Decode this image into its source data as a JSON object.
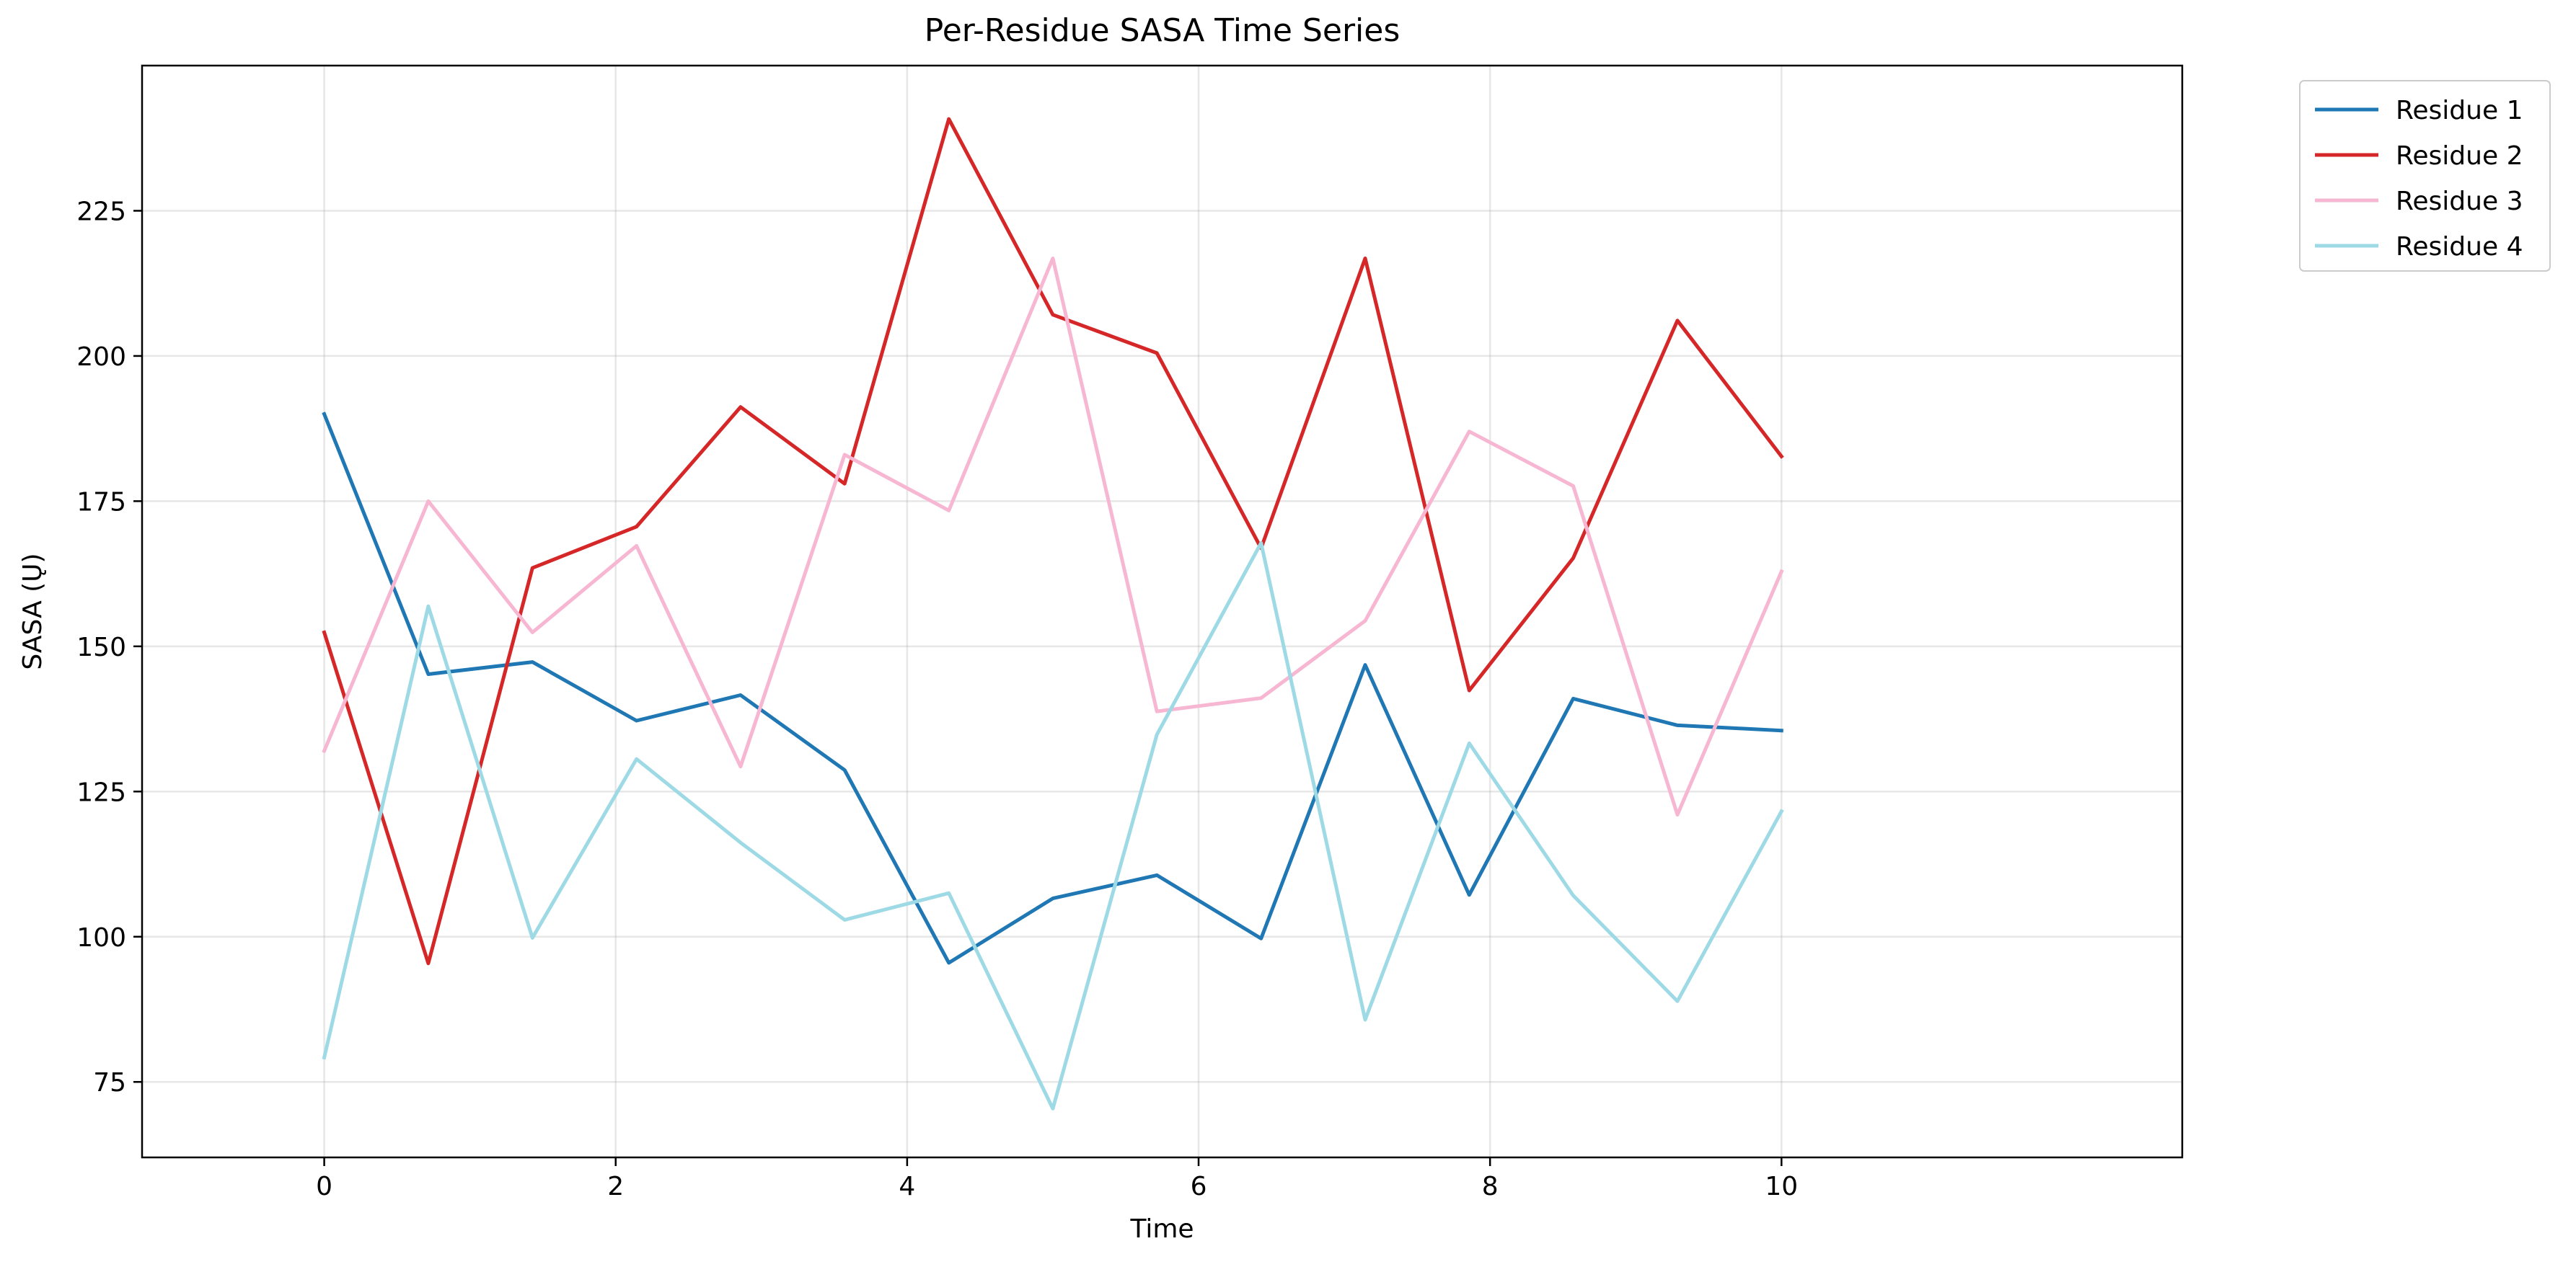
{
  "chart_data": {
    "type": "line",
    "title": "Per-Residue SASA Time Series",
    "xlabel": "Time",
    "ylabel": "SASA (Ų)",
    "xlim": [
      -1.25,
      12.75
    ],
    "ylim": [
      62,
      250
    ],
    "xticks": [
      0,
      2,
      4,
      6,
      8,
      10
    ],
    "yticks": [
      75,
      100,
      125,
      150,
      175,
      200,
      225
    ],
    "grid": true,
    "legend_position": "outside top-right",
    "x": [
      0,
      0.714,
      1.429,
      2.143,
      2.857,
      3.571,
      4.286,
      5.0,
      5.714,
      6.429,
      7.143,
      7.857,
      8.571,
      9.286,
      10.0
    ],
    "series": [
      {
        "name": "Residue 1",
        "color": "#1f77b4",
        "values": [
          190.0,
          145.2,
          147.3,
          137.2,
          141.6,
          128.7,
          95.5,
          106.6,
          110.6,
          99.7,
          146.8,
          107.2,
          141.0,
          136.4,
          135.5
        ]
      },
      {
        "name": "Residue 2",
        "color": "#d62728",
        "values": [
          152.4,
          95.4,
          163.5,
          170.6,
          191.2,
          178.0,
          240.8,
          207.1,
          200.5,
          166.9,
          216.8,
          142.4,
          165.2,
          206.1,
          182.7
        ]
      },
      {
        "name": "Residue 3",
        "color": "#f7b6d2",
        "values": [
          132.0,
          175.0,
          152.4,
          167.3,
          129.3,
          183.0,
          173.4,
          216.8,
          138.8,
          141.1,
          154.4,
          187.0,
          177.6,
          121.0,
          162.9
        ]
      },
      {
        "name": "Residue 4",
        "color": "#9edae5",
        "values": [
          79.2,
          156.9,
          99.8,
          130.6,
          116.2,
          102.9,
          107.5,
          70.4,
          134.8,
          167.8,
          85.7,
          133.3,
          107.1,
          88.9,
          121.6
        ]
      }
    ]
  }
}
